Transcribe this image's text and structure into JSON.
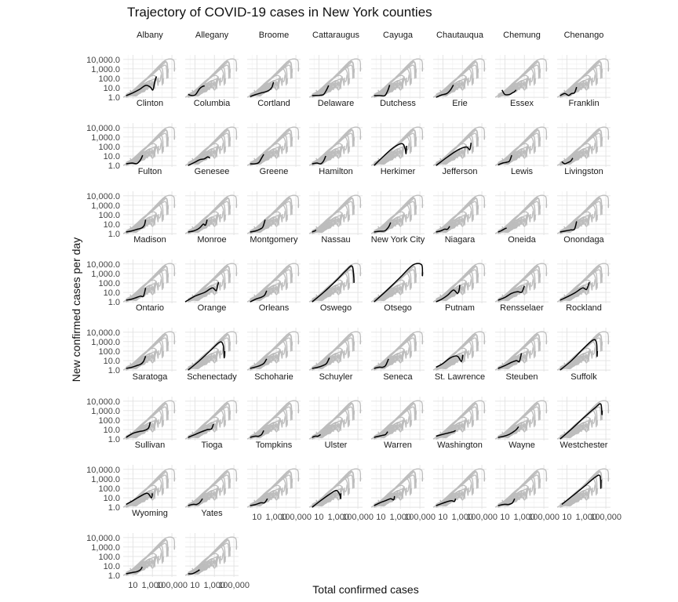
{
  "chart_data": {
    "type": "line",
    "title": "Trajectory of COVID-19 cases in New York counties",
    "xlabel": "Total confirmed cases",
    "ylabel": "New confirmed cases per day",
    "x_scale": "log10",
    "y_scale": "log10",
    "x_ticks": [
      "10",
      "1,000",
      "100,000"
    ],
    "y_ticks": [
      "1.0",
      "10.0",
      "100.0",
      "1,000.0",
      "10,000.0"
    ],
    "ylim": [
      0.7,
      30000
    ],
    "xlim": [
      1,
      300000
    ],
    "grid": true,
    "panels": [
      {
        "name": "Albany",
        "x": [
          2,
          10,
          50,
          200,
          600,
          1100,
          1700,
          2600
        ],
        "y": [
          1.5,
          3,
          7,
          18,
          12,
          6,
          40,
          160
        ]
      },
      {
        "name": "Allegany",
        "x": [
          2,
          5,
          12,
          30,
          60,
          100
        ],
        "y": [
          2,
          1.5,
          2,
          8,
          14,
          16
        ]
      },
      {
        "name": "Broome",
        "x": [
          2,
          8,
          30,
          90,
          200,
          350,
          500
        ],
        "y": [
          1.2,
          2,
          3,
          4,
          6,
          12,
          40
        ]
      },
      {
        "name": "Cattaraugus",
        "x": [
          2,
          10,
          30,
          60,
          100
        ],
        "y": [
          1.5,
          1.6,
          2,
          6,
          18
        ]
      },
      {
        "name": "Cayuga",
        "x": [
          2,
          8,
          25,
          50,
          80
        ],
        "y": [
          1.5,
          1.5,
          1.5,
          5,
          20
        ]
      },
      {
        "name": "Chautauqua",
        "x": [
          2,
          8,
          25,
          60,
          120
        ],
        "y": [
          1,
          1.8,
          2.5,
          6,
          20
        ]
      },
      {
        "name": "Chemung",
        "x": [
          5,
          10,
          30,
          60,
          100,
          140
        ],
        "y": [
          6,
          2,
          2,
          3,
          4,
          6
        ]
      },
      {
        "name": "Chenango",
        "x": [
          2,
          6,
          15,
          30,
          60,
          100
        ],
        "y": [
          1.5,
          2.5,
          1.6,
          2.5,
          3,
          12
        ]
      },
      {
        "name": "Clinton",
        "x": [
          2,
          8,
          25,
          60,
          100
        ],
        "y": [
          1.5,
          1.8,
          1.6,
          4,
          12
        ]
      },
      {
        "name": "Columbia",
        "x": [
          2,
          8,
          30,
          90,
          200,
          350
        ],
        "y": [
          1,
          2,
          4,
          5,
          8,
          6
        ]
      },
      {
        "name": "Cortland",
        "x": [
          2,
          6,
          15,
          30,
          50
        ],
        "y": [
          1.5,
          1.5,
          2,
          6,
          15
        ]
      },
      {
        "name": "Delaware",
        "x": [
          2,
          6,
          15,
          30,
          50
        ],
        "y": [
          1.5,
          1.8,
          1.5,
          3,
          10
        ]
      },
      {
        "name": "Dutchess",
        "x": [
          2,
          20,
          200,
          1500,
          3000,
          3800,
          4300
        ],
        "y": [
          1,
          10,
          80,
          200,
          60,
          18,
          120
        ]
      },
      {
        "name": "Erie",
        "x": [
          2,
          30,
          300,
          2500,
          5500,
          7000,
          7800
        ],
        "y": [
          1,
          8,
          40,
          90,
          45,
          120,
          250
        ]
      },
      {
        "name": "Essex",
        "x": [
          2,
          6,
          15,
          30,
          50
        ],
        "y": [
          1.2,
          1.8,
          2.2,
          3,
          12
        ]
      },
      {
        "name": "Franklin",
        "x": [
          3,
          6,
          12,
          25,
          40
        ],
        "y": [
          2.5,
          1.5,
          2,
          3,
          6
        ]
      },
      {
        "name": "Fulton",
        "x": [
          2,
          8,
          30,
          80,
          150,
          200
        ],
        "y": [
          1.5,
          2,
          3,
          4,
          8,
          30
        ]
      },
      {
        "name": "Genesee",
        "x": [
          2,
          8,
          30,
          70,
          120,
          180
        ],
        "y": [
          1.5,
          2,
          4,
          10,
          8,
          30
        ]
      },
      {
        "name": "Greene",
        "x": [
          2,
          8,
          20,
          40,
          70
        ],
        "y": [
          1.5,
          2,
          3,
          5,
          30
        ]
      },
      {
        "name": "Hamilton",
        "x": [
          2,
          3,
          4,
          5
        ],
        "y": [
          1.5,
          1.8,
          2,
          2.5
        ]
      },
      {
        "name": "Herkimer",
        "x": [
          2,
          8,
          25,
          60,
          100
        ],
        "y": [
          1.5,
          1.8,
          2,
          5,
          15
        ]
      },
      {
        "name": "Jefferson",
        "x": [
          2,
          6,
          15,
          30,
          50
        ],
        "y": [
          1.5,
          2,
          3,
          3,
          6
        ]
      },
      {
        "name": "Lewis",
        "x": [
          2,
          4,
          8,
          15
        ],
        "y": [
          1.5,
          2,
          3,
          4
        ]
      },
      {
        "name": "Livingston",
        "x": [
          2,
          8,
          25,
          60,
          100
        ],
        "y": [
          1.5,
          2,
          2.5,
          3,
          20
        ]
      },
      {
        "name": "Madison",
        "x": [
          2,
          8,
          25,
          60,
          120,
          200
        ],
        "y": [
          1.5,
          2,
          3,
          4,
          4,
          30
        ]
      },
      {
        "name": "Monroe",
        "x": [
          1,
          10,
          100,
          600,
          1500,
          2200,
          2700
        ],
        "y": [
          1,
          4,
          10,
          30,
          15,
          60,
          120
        ]
      },
      {
        "name": "Montgomery",
        "x": [
          2,
          8,
          25,
          60,
          100
        ],
        "y": [
          1,
          2,
          3,
          5,
          15
        ]
      },
      {
        "name": "Nassau",
        "x": [
          2,
          30,
          500,
          6000,
          25000,
          38000,
          40000
        ],
        "y": [
          1,
          10,
          150,
          2000,
          6000,
          400,
          100
        ]
      },
      {
        "name": "New York City",
        "x": [
          2,
          50,
          1000,
          20000,
          150000,
          180000,
          190000
        ],
        "y": [
          1,
          20,
          400,
          8000,
          8000,
          600,
          1500
        ]
      },
      {
        "name": "Niagara",
        "x": [
          2,
          8,
          30,
          120,
          300,
          450,
          550
        ],
        "y": [
          1,
          2,
          5,
          18,
          8,
          15,
          60
        ]
      },
      {
        "name": "Oneida",
        "x": [
          2,
          10,
          50,
          200,
          500,
          800,
          1000
        ],
        "y": [
          1.5,
          3,
          8,
          12,
          10,
          25,
          50
        ]
      },
      {
        "name": "Onondaga",
        "x": [
          2,
          15,
          80,
          400,
          1000,
          1600,
          2000
        ],
        "y": [
          1.5,
          4,
          10,
          30,
          20,
          60,
          120
        ]
      },
      {
        "name": "Ontario",
        "x": [
          2,
          8,
          25,
          60,
          120,
          200
        ],
        "y": [
          1.5,
          2,
          3,
          4,
          8,
          30
        ]
      },
      {
        "name": "Orange",
        "x": [
          2,
          30,
          400,
          3500,
          8000,
          10000,
          11000
        ],
        "y": [
          1,
          10,
          120,
          900,
          400,
          20,
          100
        ]
      },
      {
        "name": "Orleans",
        "x": [
          2,
          6,
          20,
          50,
          100
        ],
        "y": [
          1.5,
          2,
          3,
          5,
          15
        ]
      },
      {
        "name": "Oswego",
        "x": [
          2,
          8,
          25,
          60,
          120
        ],
        "y": [
          1.5,
          2,
          3,
          5,
          20
        ]
      },
      {
        "name": "Otsego",
        "x": [
          2,
          6,
          15,
          30,
          60
        ],
        "y": [
          1.5,
          2,
          2,
          3,
          15
        ]
      },
      {
        "name": "Putnam",
        "x": [
          2,
          10,
          60,
          300,
          800,
          1100
        ],
        "y": [
          2,
          5,
          20,
          30,
          8,
          40
        ]
      },
      {
        "name": "Rensselaer",
        "x": [
          2,
          10,
          40,
          150,
          300,
          500
        ],
        "y": [
          1.5,
          3,
          6,
          10,
          8,
          60
        ]
      },
      {
        "name": "Rockland",
        "x": [
          2,
          30,
          400,
          5000,
          11000,
          12500,
          13500
        ],
        "y": [
          1,
          10,
          150,
          1500,
          700,
          30,
          100
        ]
      },
      {
        "name": "Saratoga",
        "x": [
          2,
          10,
          40,
          150,
          400,
          600
        ],
        "y": [
          1.5,
          4,
          6,
          8,
          15,
          60
        ]
      },
      {
        "name": "Schenectady",
        "x": [
          2,
          10,
          50,
          200,
          500,
          800
        ],
        "y": [
          1.5,
          3,
          6,
          10,
          12,
          40
        ]
      },
      {
        "name": "Schoharie",
        "x": [
          2,
          6,
          15,
          30,
          50
        ],
        "y": [
          1.5,
          2,
          2,
          3,
          8
        ]
      },
      {
        "name": "Schuyler",
        "x": [
          2,
          4,
          8,
          15
        ],
        "y": [
          1.5,
          2,
          2,
          3
        ]
      },
      {
        "name": "Seneca",
        "x": [
          2,
          6,
          15,
          30,
          50
        ],
        "y": [
          1.5,
          2,
          2.5,
          3,
          6
        ]
      },
      {
        "name": "St. Lawrence",
        "x": [
          2,
          8,
          25,
          60,
          120,
          200
        ],
        "y": [
          2,
          3,
          4,
          5,
          6,
          8
        ]
      },
      {
        "name": "Steuben",
        "x": [
          2,
          8,
          25,
          60,
          150,
          250
        ],
        "y": [
          1.5,
          2,
          3,
          5,
          10,
          20
        ]
      },
      {
        "name": "Suffolk",
        "x": [
          2,
          40,
          600,
          8000,
          30000,
          40000,
          42000
        ],
        "y": [
          1,
          15,
          200,
          2000,
          5000,
          400,
          1000
        ]
      },
      {
        "name": "Sullivan",
        "x": [
          2,
          10,
          60,
          300,
          800,
          1000
        ],
        "y": [
          2,
          5,
          15,
          30,
          10,
          30
        ]
      },
      {
        "name": "Tioga",
        "x": [
          2,
          6,
          15,
          30,
          60
        ],
        "y": [
          1.5,
          2,
          2,
          3,
          8
        ]
      },
      {
        "name": "Tompkins",
        "x": [
          2,
          8,
          25,
          60,
          120
        ],
        "y": [
          1.5,
          2,
          3,
          3,
          8
        ]
      },
      {
        "name": "Ulster",
        "x": [
          2,
          15,
          100,
          600,
          1400,
          1700,
          1800
        ],
        "y": [
          1,
          5,
          20,
          60,
          20,
          8,
          30
        ]
      },
      {
        "name": "Warren",
        "x": [
          2,
          8,
          30,
          100,
          200,
          250
        ],
        "y": [
          1.5,
          3,
          5,
          8,
          6,
          15
        ]
      },
      {
        "name": "Washington",
        "x": [
          2,
          8,
          30,
          80,
          150,
          200
        ],
        "y": [
          1.5,
          2.5,
          4,
          5,
          4,
          8
        ]
      },
      {
        "name": "Wayne",
        "x": [
          2,
          8,
          25,
          60,
          100
        ],
        "y": [
          1.5,
          2,
          2,
          3,
          8
        ]
      },
      {
        "name": "Westchester",
        "x": [
          3,
          50,
          800,
          8000,
          25000,
          30000,
          32000
        ],
        "y": [
          2,
          20,
          200,
          1500,
          2000,
          100,
          800
        ]
      },
      {
        "name": "Wyoming",
        "x": [
          2,
          8,
          25,
          60,
          90
        ],
        "y": [
          1.5,
          2,
          2.5,
          4,
          8
        ]
      },
      {
        "name": "Yates",
        "x": [
          2,
          5,
          10,
          20,
          30
        ],
        "y": [
          1.5,
          1.5,
          2,
          3,
          4
        ]
      }
    ]
  }
}
